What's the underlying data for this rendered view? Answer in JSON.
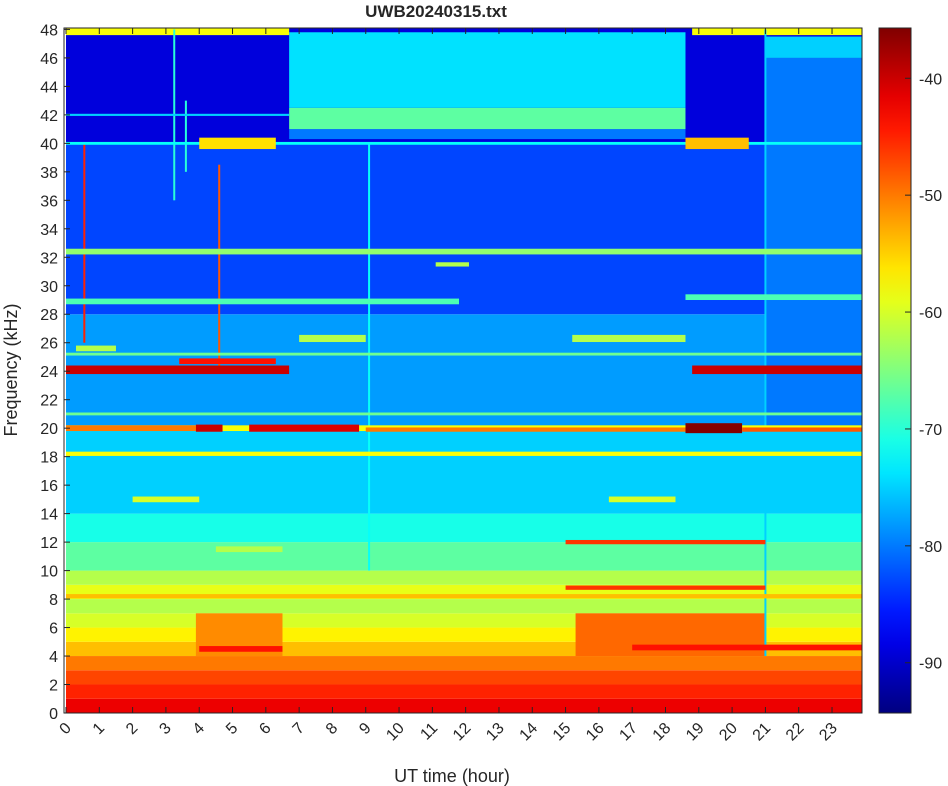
{
  "chart_data": {
    "type": "heatmap",
    "title": "UWB20240315.txt",
    "xlabel": "UT time (hour)",
    "ylabel": "Frequency (kHz)",
    "xlim": [
      -0.06,
      23.9
    ],
    "ylim": [
      0,
      48.1
    ],
    "xticks": [
      0,
      1,
      2,
      3,
      4,
      5,
      6,
      7,
      8,
      9,
      10,
      11,
      12,
      13,
      14,
      15,
      16,
      17,
      18,
      19,
      20,
      21,
      22,
      23
    ],
    "yticks": [
      0,
      2,
      4,
      6,
      8,
      10,
      12,
      14,
      16,
      18,
      20,
      22,
      24,
      26,
      28,
      30,
      32,
      34,
      36,
      38,
      40,
      42,
      44,
      46,
      48
    ],
    "colorbar": {
      "clim": [
        -94.3,
        -35.7
      ],
      "ticks": [
        -40,
        -50,
        -60,
        -70,
        -80,
        -90
      ],
      "colormap": "jet"
    },
    "regions": [
      {
        "t": [
          0,
          23.9
        ],
        "f": [
          0,
          1
        ],
        "level": -42
      },
      {
        "t": [
          0,
          23.9
        ],
        "f": [
          1,
          2
        ],
        "level": -45
      },
      {
        "t": [
          0,
          23.9
        ],
        "f": [
          2,
          3
        ],
        "level": -47
      },
      {
        "t": [
          0,
          23.9
        ],
        "f": [
          3,
          4
        ],
        "level": -50
      },
      {
        "t": [
          0,
          23.9
        ],
        "f": [
          4,
          5
        ],
        "level": -54
      },
      {
        "t": [
          0,
          23.9
        ],
        "f": [
          5,
          6
        ],
        "level": -57
      },
      {
        "t": [
          0,
          23.9
        ],
        "f": [
          6,
          7
        ],
        "level": -60
      },
      {
        "t": [
          0,
          23.9
        ],
        "f": [
          7,
          8
        ],
        "level": -62
      },
      {
        "t": [
          0,
          23.9
        ],
        "f": [
          8,
          9
        ],
        "level": -59
      },
      {
        "t": [
          0,
          23.9
        ],
        "f": [
          9,
          10
        ],
        "level": -62
      },
      {
        "t": [
          0,
          23.9
        ],
        "f": [
          10,
          12
        ],
        "level": -67
      },
      {
        "t": [
          0,
          23.9
        ],
        "f": [
          12,
          14
        ],
        "level": -71
      },
      {
        "t": [
          0,
          23.9
        ],
        "f": [
          14,
          20
        ],
        "level": -75
      },
      {
        "t": [
          0,
          23.9
        ],
        "f": [
          20,
          28
        ],
        "level": -78
      },
      {
        "t": [
          0,
          23.9
        ],
        "f": [
          28,
          40
        ],
        "level": -83
      },
      {
        "t": [
          0,
          23.9
        ],
        "f": [
          40,
          48.1
        ],
        "level": -89
      },
      {
        "t": [
          6.7,
          18.6
        ],
        "f": [
          40.3,
          41
        ],
        "level": -80
      },
      {
        "t": [
          6.7,
          18.6
        ],
        "f": [
          41,
          42.5
        ],
        "level": -67
      },
      {
        "t": [
          6.7,
          18.6
        ],
        "f": [
          42.5,
          47.8
        ],
        "level": -74
      },
      {
        "t": [
          15.3,
          21
        ],
        "f": [
          4,
          7
        ],
        "level": -49
      },
      {
        "t": [
          3.9,
          6.5
        ],
        "f": [
          4,
          7
        ],
        "level": -51
      },
      {
        "t": [
          21,
          23.9
        ],
        "f": [
          20,
          46
        ],
        "level": -80
      },
      {
        "t": [
          21,
          23.9
        ],
        "f": [
          46,
          47.5
        ],
        "level": -75
      },
      {
        "t": [
          0,
          6.7
        ],
        "f": [
          47.6,
          48.1
        ],
        "level": -58
      },
      {
        "t": [
          18.8,
          23.9
        ],
        "f": [
          47.6,
          48.1
        ],
        "level": -58
      }
    ],
    "lines": [
      {
        "t": [
          0,
          6.7
        ],
        "f": 24.1,
        "w": 0.6,
        "level": -40
      },
      {
        "t": [
          18.8,
          23.9
        ],
        "f": 24.1,
        "w": 0.6,
        "level": -40
      },
      {
        "t": [
          3.4,
          6.3
        ],
        "f": 24.7,
        "w": 0.4,
        "level": -44
      },
      {
        "t": [
          0,
          23.9
        ],
        "f": 25.2,
        "w": 0.2,
        "level": -66
      },
      {
        "t": [
          0,
          23.9
        ],
        "f": 20.0,
        "w": 0.4,
        "level": -58
      },
      {
        "t": [
          0,
          3.9
        ],
        "f": 20.0,
        "w": 0.4,
        "level": -50
      },
      {
        "t": [
          3.9,
          4.7
        ],
        "f": 20.0,
        "w": 0.5,
        "level": -40
      },
      {
        "t": [
          5.5,
          8.8
        ],
        "f": 20.0,
        "w": 0.5,
        "level": -41
      },
      {
        "t": [
          9,
          18.6
        ],
        "f": 19.9,
        "w": 0.3,
        "level": -50
      },
      {
        "t": [
          18.6,
          20.3
        ],
        "f": 20.0,
        "w": 0.7,
        "level": -36
      },
      {
        "t": [
          20.3,
          23.9
        ],
        "f": 19.9,
        "w": 0.3,
        "level": -48
      },
      {
        "t": [
          0,
          23.9
        ],
        "f": 21.0,
        "w": 0.2,
        "level": -66
      },
      {
        "t": [
          0,
          23.9
        ],
        "f": 18.2,
        "w": 0.3,
        "level": -58
      },
      {
        "t": [
          0,
          23.9
        ],
        "f": 8.2,
        "w": 0.3,
        "level": -54
      },
      {
        "t": [
          15,
          21
        ],
        "f": 12.0,
        "w": 0.3,
        "level": -46
      },
      {
        "t": [
          15,
          21
        ],
        "f": 8.8,
        "w": 0.3,
        "level": -46
      },
      {
        "t": [
          4,
          6.5
        ],
        "f": 4.5,
        "w": 0.4,
        "level": -44
      },
      {
        "t": [
          17,
          23.9
        ],
        "f": 4.6,
        "w": 0.4,
        "level": -44
      },
      {
        "t": [
          0,
          23.9
        ],
        "f": 40.0,
        "w": 0.2,
        "level": -72
      },
      {
        "t": [
          4,
          6.3
        ],
        "f": 40.0,
        "w": 0.8,
        "level": -56
      },
      {
        "t": [
          18.6,
          20.5
        ],
        "f": 40.0,
        "w": 0.8,
        "level": -54
      },
      {
        "t": [
          0,
          23.9
        ],
        "f": 32.4,
        "w": 0.4,
        "level": -64
      },
      {
        "t": [
          0,
          11.8
        ],
        "f": 28.9,
        "w": 0.4,
        "level": -68
      },
      {
        "t": [
          18.6,
          23.9
        ],
        "f": 29.2,
        "w": 0.4,
        "level": -68
      },
      {
        "t": [
          7,
          9
        ],
        "f": 26.3,
        "w": 0.5,
        "level": -62
      },
      {
        "t": [
          15.2,
          18.6
        ],
        "f": 26.3,
        "w": 0.5,
        "level": -62
      },
      {
        "t": [
          2,
          4
        ],
        "f": 15.0,
        "w": 0.4,
        "level": -60
      },
      {
        "t": [
          16.3,
          18.3
        ],
        "f": 15.0,
        "w": 0.4,
        "level": -60
      },
      {
        "t": [
          0.3,
          1.5
        ],
        "f": 25.6,
        "w": 0.4,
        "level": -62
      },
      {
        "t": [
          4.5,
          6.5
        ],
        "f": 11.5,
        "w": 0.4,
        "level": -62
      },
      {
        "t": [
          11.1,
          12.1
        ],
        "f": 31.5,
        "w": 0.3,
        "level": -62
      },
      {
        "t": [
          0,
          6.7
        ],
        "f": 42.0,
        "w": 0.15,
        "level": -75
      }
    ],
    "streaks": [
      {
        "t": 0.55,
        "f": [
          26,
          40
        ],
        "level": -45
      },
      {
        "t": 4.6,
        "f": [
          24,
          38.5
        ],
        "level": -48
      },
      {
        "t": 3.25,
        "f": [
          36,
          48
        ],
        "level": -70
      },
      {
        "t": 3.6,
        "f": [
          38,
          43
        ],
        "level": -70
      },
      {
        "t": 9.1,
        "f": [
          10,
          40
        ],
        "level": -72
      },
      {
        "t": 21.0,
        "f": [
          4,
          48
        ],
        "level": -75
      }
    ]
  }
}
